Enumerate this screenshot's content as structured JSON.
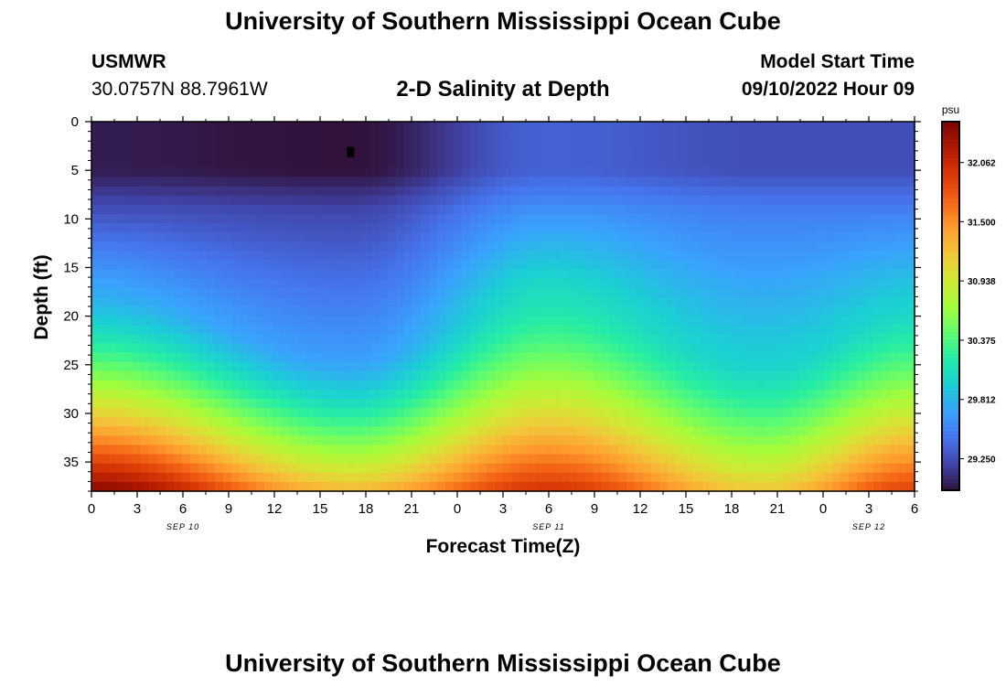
{
  "header": {
    "title": "University of Southern Mississippi Ocean Cube",
    "station": "USMWR",
    "coords": "30.0757N  88.7961W",
    "plot_title": "2-D Salinity at Depth",
    "model_label": "Model Start Time",
    "model_time": "09/10/2022 Hour 09"
  },
  "footer": {
    "title": "University of Southern Mississippi Ocean Cube"
  },
  "chart_data": {
    "type": "heatmap",
    "title": "2-D Salinity at Depth",
    "xlabel": "Forecast Time(Z)",
    "ylabel": "Depth (ft)",
    "x_tick_labels": [
      "0",
      "3",
      "6",
      "9",
      "12",
      "15",
      "18",
      "21",
      "0",
      "3",
      "6",
      "9",
      "12",
      "15",
      "18",
      "21",
      "0",
      "3",
      "6"
    ],
    "date_labels": [
      "SEP 10",
      "SEP 11",
      "SEP 12"
    ],
    "y_ticks": [
      0,
      5,
      10,
      15,
      20,
      25,
      30,
      35
    ],
    "ylim": [
      0,
      38
    ],
    "xlim_hours": [
      0,
      54
    ],
    "y_inverted": true,
    "colorbar": {
      "unit": "psu",
      "ticks": [
        "32.062",
        "31.500",
        "30.938",
        "30.375",
        "29.812",
        "29.250"
      ],
      "range": [
        28.95,
        32.45
      ]
    },
    "salinity_profile": {
      "surface_layer": [
        {
          "hour": 0,
          "depth_ft": 3,
          "psu": 29.0
        },
        {
          "hour": 17,
          "depth_ft": 4,
          "psu": 28.95
        },
        {
          "hour": 30,
          "depth_ft": 4,
          "psu": 29.35
        },
        {
          "hour": 44,
          "depth_ft": 4,
          "psu": 29.25
        }
      ],
      "bottom_layer": [
        {
          "hour": 0,
          "depth_ft": 38,
          "psu": 32.4
        },
        {
          "hour": 17,
          "depth_ft": 38,
          "psu": 31.3
        },
        {
          "hour": 30,
          "depth_ft": 38,
          "psu": 32.0
        },
        {
          "hour": 44,
          "depth_ft": 38,
          "psu": 31.2
        },
        {
          "hour": 54,
          "depth_ft": 38,
          "psu": 31.9
        }
      ],
      "halocline_top_depth_ft": [
        {
          "hour": 0,
          "depth": 22.5
        },
        {
          "hour": 17,
          "depth": 29.5
        },
        {
          "hour": 30,
          "depth": 23
        },
        {
          "hour": 44,
          "depth": 30
        },
        {
          "hour": 54,
          "depth": 24
        }
      ]
    },
    "colormap": [
      "#30123b",
      "#4145ab",
      "#4675ed",
      "#39a2fc",
      "#1bcfd4",
      "#24eca6",
      "#61fc6c",
      "#a4fc3b",
      "#d1e834",
      "#f3c63a",
      "#fe9b2d",
      "#f36315",
      "#d93806",
      "#b11901",
      "#7a0403"
    ]
  }
}
